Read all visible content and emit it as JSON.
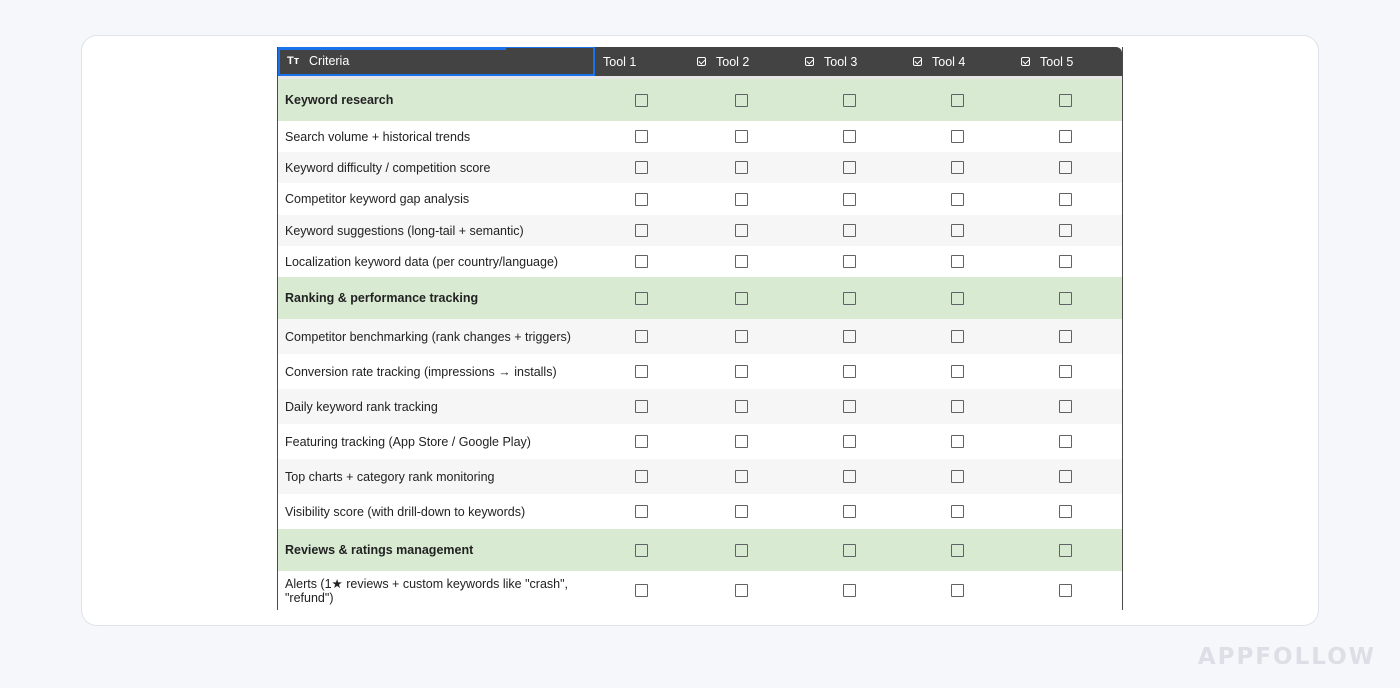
{
  "header": {
    "criteria_label": "Criteria",
    "criteria_icon": "text-type-icon",
    "tools": [
      "Tool 1",
      "Tool 2",
      "Tool 3",
      "Tool 4",
      "Tool 5"
    ]
  },
  "rows": [
    {
      "label": "Keyword research",
      "type": "section"
    },
    {
      "label": "Search volume + historical trends",
      "type": "plain"
    },
    {
      "label": "Keyword difficulty / competition score",
      "type": "alt"
    },
    {
      "label": "Competitor keyword gap analysis",
      "type": "plain"
    },
    {
      "label": "Keyword suggestions (long-tail + semantic)",
      "type": "alt"
    },
    {
      "label": "Localization keyword data (per country/language)",
      "type": "plain"
    },
    {
      "label": "Ranking & performance tracking",
      "type": "section"
    },
    {
      "label": "Competitor benchmarking (rank changes + triggers)",
      "type": "alt"
    },
    {
      "label": "Conversion rate tracking (impressions → installs)",
      "type": "plain"
    },
    {
      "label": "Daily keyword rank tracking",
      "type": "alt"
    },
    {
      "label": "Featuring tracking (App Store / Google Play)",
      "type": "plain"
    },
    {
      "label": "Top charts + category rank monitoring",
      "type": "alt"
    },
    {
      "label": "Visibility score (with drill-down to keywords)",
      "type": "plain"
    },
    {
      "label": "Reviews & ratings management",
      "type": "section"
    },
    {
      "label": "Alerts (1★ reviews + custom keywords like \"crash\", \"refund\")",
      "type": "plain"
    }
  ],
  "watermark": "APPFOLLOW",
  "colors": {
    "header_bg": "#434343",
    "section_bg": "#d9ead3",
    "alt_row_bg": "#f6f6f6",
    "selection": "#1a73e8"
  }
}
